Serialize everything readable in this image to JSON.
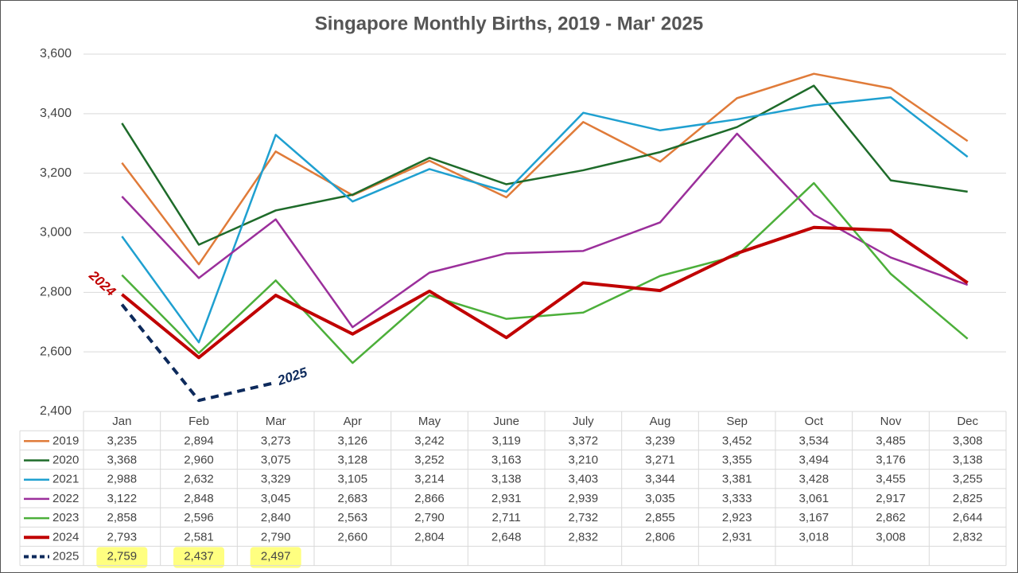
{
  "chart_data": {
    "type": "line",
    "title": "Singapore Monthly Births, 2019 - Mar' 2025",
    "categories": [
      "Jan",
      "Feb",
      "Mar",
      "Apr",
      "May",
      "June",
      "July",
      "Aug",
      "Sep",
      "Oct",
      "Nov",
      "Dec"
    ],
    "ylim": [
      2400,
      3600
    ],
    "yticks": [
      {
        "value": 2400,
        "label": "2,400"
      },
      {
        "value": 2600,
        "label": "2,600"
      },
      {
        "value": 2800,
        "label": "2,800"
      },
      {
        "value": 3000,
        "label": "3,000"
      },
      {
        "value": 3200,
        "label": "3,200"
      },
      {
        "value": 3400,
        "label": "3,400"
      },
      {
        "value": 3600,
        "label": "3,600"
      }
    ],
    "grid": true,
    "data_table": true,
    "series": [
      {
        "name": "2019",
        "color": "#e07b39",
        "width": 2.5,
        "values": [
          3235,
          2894,
          3273,
          3126,
          3242,
          3119,
          3372,
          3239,
          3452,
          3534,
          3485,
          3308
        ],
        "value_labels": [
          "3,235",
          "2,894",
          "3,273",
          "3,126",
          "3,242",
          "3,119",
          "3,372",
          "3,239",
          "3,452",
          "3,534",
          "3,485",
          "3,308"
        ]
      },
      {
        "name": "2020",
        "color": "#1e6b2a",
        "width": 2.5,
        "values": [
          3368,
          2960,
          3075,
          3128,
          3252,
          3163,
          3210,
          3271,
          3355,
          3494,
          3176,
          3138
        ],
        "value_labels": [
          "3,368",
          "2,960",
          "3,075",
          "3,128",
          "3,252",
          "3,163",
          "3,210",
          "3,271",
          "3,355",
          "3,494",
          "3,176",
          "3,138"
        ]
      },
      {
        "name": "2021",
        "color": "#1fa0d0",
        "width": 2.5,
        "values": [
          2988,
          2632,
          3329,
          3105,
          3214,
          3138,
          3403,
          3344,
          3381,
          3428,
          3455,
          3255
        ],
        "value_labels": [
          "2,988",
          "2,632",
          "3,329",
          "3,105",
          "3,214",
          "3,138",
          "3,403",
          "3,344",
          "3,381",
          "3,428",
          "3,455",
          "3,255"
        ]
      },
      {
        "name": "2022",
        "color": "#9b2f9b",
        "width": 2.5,
        "values": [
          3122,
          2848,
          3045,
          2683,
          2866,
          2931,
          2939,
          3035,
          3333,
          3061,
          2917,
          2825
        ],
        "value_labels": [
          "3,122",
          "2,848",
          "3,045",
          "2,683",
          "2,866",
          "2,931",
          "2,939",
          "3,035",
          "3,333",
          "3,061",
          "2,917",
          "2,825"
        ]
      },
      {
        "name": "2023",
        "color": "#4caf3a",
        "width": 2.5,
        "values": [
          2858,
          2596,
          2840,
          2563,
          2790,
          2711,
          2732,
          2855,
          2923,
          3167,
          2862,
          2644
        ],
        "value_labels": [
          "2,858",
          "2,596",
          "2,840",
          "2,563",
          "2,790",
          "2,711",
          "2,732",
          "2,855",
          "2,923",
          "3,167",
          "2,862",
          "2,644"
        ]
      },
      {
        "name": "2024",
        "color": "#c00000",
        "width": 4,
        "values": [
          2793,
          2581,
          2790,
          2660,
          2804,
          2648,
          2832,
          2806,
          2931,
          3018,
          3008,
          2832
        ],
        "value_labels": [
          "2,793",
          "2,581",
          "2,790",
          "2,660",
          "2,804",
          "2,648",
          "2,832",
          "2,806",
          "2,931",
          "3,018",
          "3,008",
          "2,832"
        ]
      },
      {
        "name": "2025",
        "color": "#0d2a5c",
        "width": 4,
        "dashed": true,
        "highlight": "#ffff80",
        "values": [
          2759,
          2437,
          2497,
          null,
          null,
          null,
          null,
          null,
          null,
          null,
          null,
          null
        ],
        "value_labels": [
          "2,759",
          "2,437",
          "2,497",
          null,
          null,
          null,
          null,
          null,
          null,
          null,
          null,
          null
        ]
      }
    ],
    "annotations": [
      {
        "text": "2024",
        "color": "#c00000"
      },
      {
        "text": "2025",
        "color": "#0d2a5c"
      }
    ]
  }
}
